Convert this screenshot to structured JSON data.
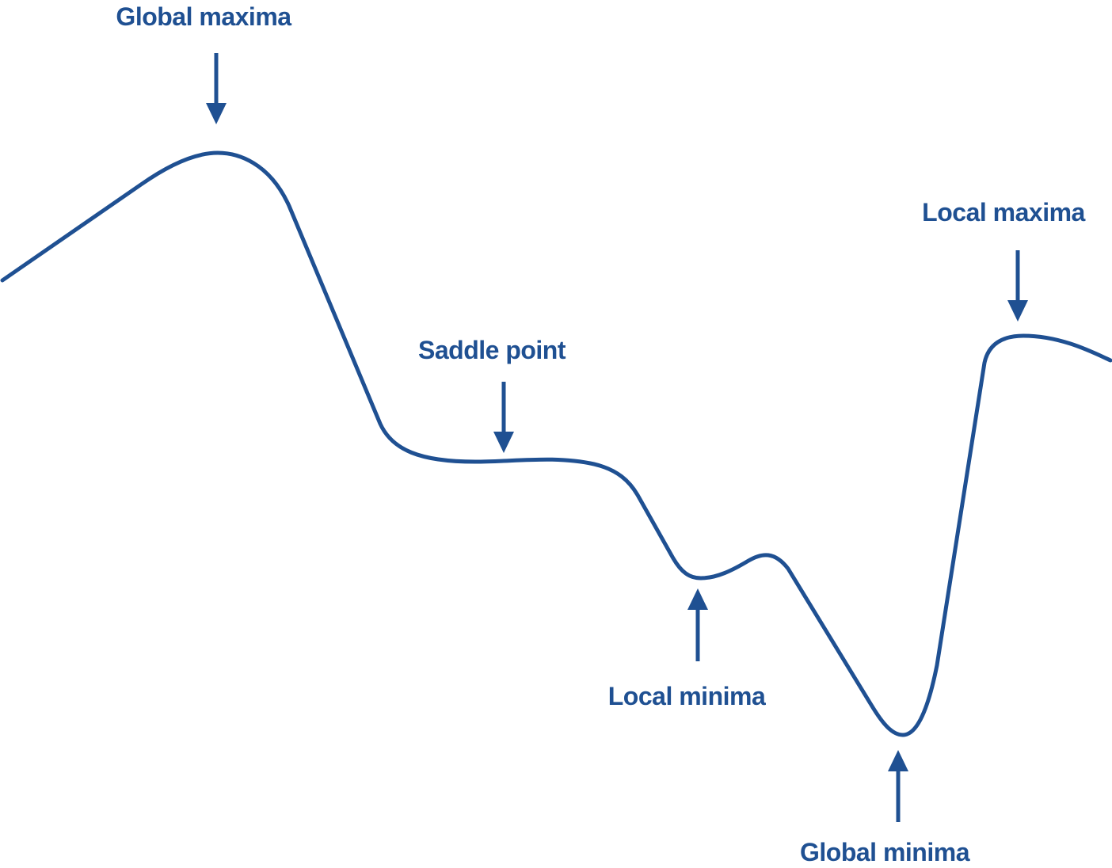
{
  "diagram": {
    "labels": {
      "global_maxima": "Global maxima",
      "saddle_point": "Saddle point",
      "local_maxima": "Local maxima",
      "local_minima": "Local minima",
      "global_minima": "Global minima"
    },
    "colors": {
      "stroke": "#1f5092",
      "text": "#1f5092",
      "background": "#ffffff"
    }
  }
}
